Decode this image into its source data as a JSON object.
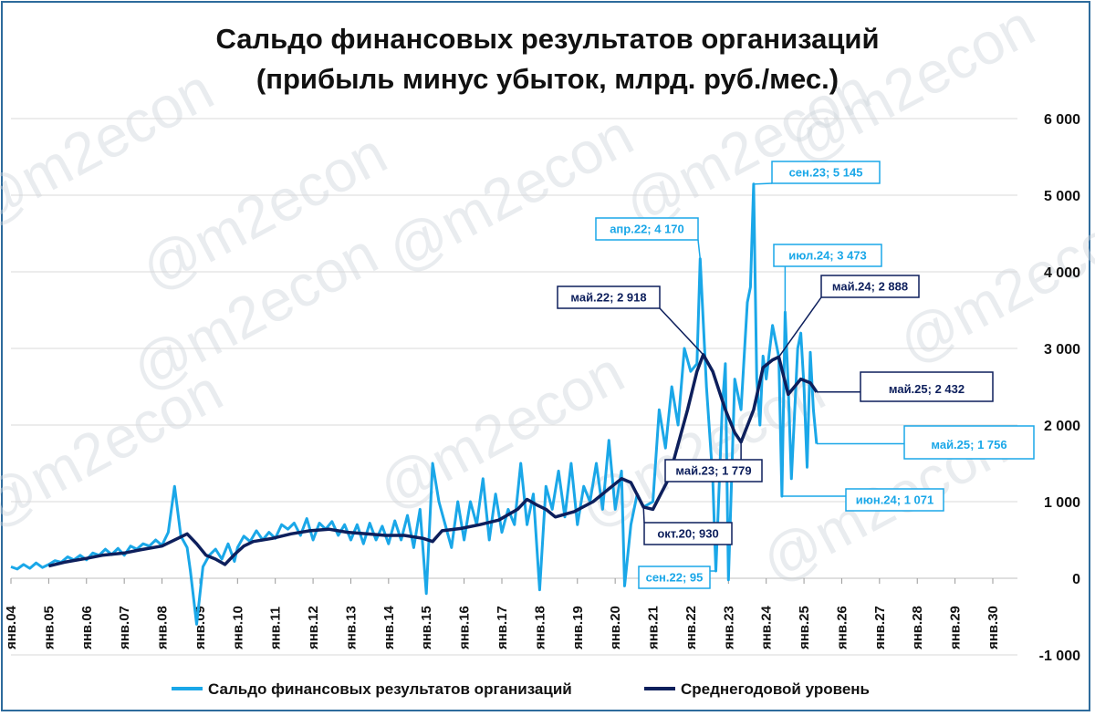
{
  "title_line1": "Сальдо финансовых результатов организаций",
  "title_line2": "(прибыль минус убыток, млрд. руб./мес.)",
  "watermark": "@m2econ",
  "colors": {
    "series1": "#1aa7e8",
    "series2": "#0d1f5c",
    "frame": "#2e6b9c",
    "grid": "#d9d9d9"
  },
  "chart_data": {
    "type": "line",
    "title": "Сальдо финансовых результатов организаций (прибыль минус убыток, млрд. руб./мес.)",
    "x_range": [
      "2004-01",
      "2030-12"
    ],
    "ylim": [
      -1000,
      6000
    ],
    "y_ticks": [
      -1000,
      0,
      1000,
      2000,
      3000,
      4000,
      5000,
      6000
    ],
    "y_tick_labels": [
      "-1 000",
      "0",
      "1 000",
      "2 000",
      "3 000",
      "4 000",
      "5 000",
      "6 000"
    ],
    "y_axis_position": "right",
    "x_tick_labels": [
      "янв.04",
      "янв.05",
      "янв.06",
      "янв.07",
      "янв.08",
      "янв.09",
      "янв.10",
      "янв.11",
      "янв.12",
      "янв.13",
      "янв.14",
      "янв.15",
      "янв.16",
      "янв.17",
      "янв.18",
      "янв.19",
      "янв.20",
      "янв.21",
      "янв.22",
      "янв.23",
      "янв.24",
      "янв.25",
      "янв.26",
      "янв.27",
      "янв.28",
      "янв.29",
      "янв.30"
    ],
    "grid": true,
    "legend_position": "bottom",
    "series": [
      {
        "name": "Сальдо финансовых результатов организаций",
        "color": "#1aa7e8",
        "points": [
          [
            "2004-01",
            150
          ],
          [
            "2004-03",
            120
          ],
          [
            "2004-05",
            180
          ],
          [
            "2004-07",
            130
          ],
          [
            "2004-09",
            200
          ],
          [
            "2004-11",
            140
          ],
          [
            "2005-01",
            180
          ],
          [
            "2005-03",
            230
          ],
          [
            "2005-05",
            210
          ],
          [
            "2005-07",
            280
          ],
          [
            "2005-09",
            240
          ],
          [
            "2005-11",
            300
          ],
          [
            "2006-01",
            240
          ],
          [
            "2006-03",
            330
          ],
          [
            "2006-05",
            300
          ],
          [
            "2006-07",
            380
          ],
          [
            "2006-09",
            310
          ],
          [
            "2006-11",
            390
          ],
          [
            "2007-01",
            300
          ],
          [
            "2007-03",
            420
          ],
          [
            "2007-05",
            380
          ],
          [
            "2007-07",
            450
          ],
          [
            "2007-09",
            420
          ],
          [
            "2007-11",
            500
          ],
          [
            "2008-01",
            430
          ],
          [
            "2008-03",
            600
          ],
          [
            "2008-05",
            1200
          ],
          [
            "2008-07",
            550
          ],
          [
            "2008-09",
            400
          ],
          [
            "2008-10",
            100
          ],
          [
            "2008-12",
            -600
          ],
          [
            "2009-02",
            150
          ],
          [
            "2009-04",
            300
          ],
          [
            "2009-06",
            380
          ],
          [
            "2009-08",
            250
          ],
          [
            "2009-10",
            450
          ],
          [
            "2009-12",
            220
          ],
          [
            "2010-01",
            400
          ],
          [
            "2010-03",
            550
          ],
          [
            "2010-05",
            480
          ],
          [
            "2010-07",
            620
          ],
          [
            "2010-09",
            500
          ],
          [
            "2010-11",
            600
          ],
          [
            "2011-01",
            520
          ],
          [
            "2011-03",
            700
          ],
          [
            "2011-05",
            640
          ],
          [
            "2011-07",
            720
          ],
          [
            "2011-09",
            560
          ],
          [
            "2011-11",
            780
          ],
          [
            "2012-01",
            500
          ],
          [
            "2012-03",
            720
          ],
          [
            "2012-05",
            640
          ],
          [
            "2012-07",
            740
          ],
          [
            "2012-09",
            560
          ],
          [
            "2012-11",
            700
          ],
          [
            "2013-01",
            500
          ],
          [
            "2013-03",
            700
          ],
          [
            "2013-05",
            450
          ],
          [
            "2013-07",
            720
          ],
          [
            "2013-09",
            500
          ],
          [
            "2013-11",
            680
          ],
          [
            "2014-01",
            450
          ],
          [
            "2014-03",
            750
          ],
          [
            "2014-05",
            500
          ],
          [
            "2014-07",
            820
          ],
          [
            "2014-09",
            400
          ],
          [
            "2014-11",
            900
          ],
          [
            "2015-01",
            -200
          ],
          [
            "2015-03",
            1500
          ],
          [
            "2015-05",
            1000
          ],
          [
            "2015-07",
            700
          ],
          [
            "2015-09",
            400
          ],
          [
            "2015-11",
            1000
          ],
          [
            "2016-01",
            500
          ],
          [
            "2016-03",
            1000
          ],
          [
            "2016-05",
            700
          ],
          [
            "2016-07",
            1300
          ],
          [
            "2016-09",
            500
          ],
          [
            "2016-11",
            1100
          ],
          [
            "2017-01",
            600
          ],
          [
            "2017-03",
            900
          ],
          [
            "2017-05",
            700
          ],
          [
            "2017-07",
            1500
          ],
          [
            "2017-09",
            700
          ],
          [
            "2017-11",
            1100
          ],
          [
            "2018-01",
            -150
          ],
          [
            "2018-03",
            1200
          ],
          [
            "2018-05",
            900
          ],
          [
            "2018-07",
            1400
          ],
          [
            "2018-09",
            800
          ],
          [
            "2018-11",
            1500
          ],
          [
            "2019-01",
            700
          ],
          [
            "2019-03",
            1200
          ],
          [
            "2019-05",
            1000
          ],
          [
            "2019-07",
            1500
          ],
          [
            "2019-09",
            900
          ],
          [
            "2019-11",
            1800
          ],
          [
            "2020-01",
            900
          ],
          [
            "2020-03",
            1400
          ],
          [
            "2020-04",
            -100
          ],
          [
            "2020-06",
            700
          ],
          [
            "2020-08",
            1100
          ],
          [
            "2020-10",
            930
          ],
          [
            "2021-01",
            1000
          ],
          [
            "2021-03",
            2200
          ],
          [
            "2021-05",
            1700
          ],
          [
            "2021-07",
            2500
          ],
          [
            "2021-09",
            2000
          ],
          [
            "2021-11",
            3000
          ],
          [
            "2022-01",
            2700
          ],
          [
            "2022-03",
            2800
          ],
          [
            "2022-04",
            4170
          ],
          [
            "2022-06",
            2500
          ],
          [
            "2022-08",
            1300
          ],
          [
            "2022-09",
            95
          ],
          [
            "2022-11",
            2200
          ],
          [
            "2022-12",
            2800
          ],
          [
            "2023-01",
            -20
          ],
          [
            "2023-03",
            2600
          ],
          [
            "2023-05",
            2200
          ],
          [
            "2023-07",
            3600
          ],
          [
            "2023-08",
            3800
          ],
          [
            "2023-09",
            5145
          ],
          [
            "2023-10",
            2600
          ],
          [
            "2023-11",
            2000
          ],
          [
            "2023-12",
            2900
          ],
          [
            "2024-01",
            2600
          ],
          [
            "2024-03",
            3300
          ],
          [
            "2024-05",
            2888
          ],
          [
            "2024-06",
            1071
          ],
          [
            "2024-07",
            3473
          ],
          [
            "2024-08",
            2500
          ],
          [
            "2024-09",
            1300
          ],
          [
            "2024-11",
            3000
          ],
          [
            "2024-12",
            3200
          ],
          [
            "2025-01",
            2500
          ],
          [
            "2025-02",
            1450
          ],
          [
            "2025-03",
            2950
          ],
          [
            "2025-04",
            2200
          ],
          [
            "2025-05",
            1756
          ]
        ]
      },
      {
        "name": "Среднегодовой уровень",
        "color": "#0d1f5c",
        "points": [
          [
            "2005-01",
            160
          ],
          [
            "2005-06",
            210
          ],
          [
            "2006-01",
            260
          ],
          [
            "2006-06",
            300
          ],
          [
            "2007-01",
            330
          ],
          [
            "2007-06",
            370
          ],
          [
            "2008-01",
            420
          ],
          [
            "2008-06",
            520
          ],
          [
            "2008-09",
            580
          ],
          [
            "2008-12",
            450
          ],
          [
            "2009-03",
            300
          ],
          [
            "2009-06",
            250
          ],
          [
            "2009-09",
            180
          ],
          [
            "2009-12",
            310
          ],
          [
            "2010-03",
            420
          ],
          [
            "2010-06",
            480
          ],
          [
            "2010-12",
            520
          ],
          [
            "2011-06",
            580
          ],
          [
            "2011-12",
            620
          ],
          [
            "2012-06",
            640
          ],
          [
            "2012-12",
            600
          ],
          [
            "2013-06",
            580
          ],
          [
            "2013-12",
            560
          ],
          [
            "2014-06",
            560
          ],
          [
            "2014-12",
            520
          ],
          [
            "2015-03",
            480
          ],
          [
            "2015-06",
            620
          ],
          [
            "2015-12",
            650
          ],
          [
            "2016-06",
            700
          ],
          [
            "2016-12",
            760
          ],
          [
            "2017-06",
            900
          ],
          [
            "2017-09",
            1030
          ],
          [
            "2017-12",
            960
          ],
          [
            "2018-03",
            900
          ],
          [
            "2018-06",
            800
          ],
          [
            "2018-12",
            870
          ],
          [
            "2019-06",
            1000
          ],
          [
            "2019-12",
            1200
          ],
          [
            "2020-03",
            1300
          ],
          [
            "2020-06",
            1250
          ],
          [
            "2020-10",
            930
          ],
          [
            "2021-01",
            900
          ],
          [
            "2021-06",
            1300
          ],
          [
            "2021-12",
            2200
          ],
          [
            "2022-03",
            2700
          ],
          [
            "2022-05",
            2918
          ],
          [
            "2022-08",
            2700
          ],
          [
            "2022-12",
            2200
          ],
          [
            "2023-03",
            1900
          ],
          [
            "2023-05",
            1779
          ],
          [
            "2023-09",
            2200
          ],
          [
            "2023-12",
            2750
          ],
          [
            "2024-03",
            2850
          ],
          [
            "2024-05",
            2888
          ],
          [
            "2024-08",
            2400
          ],
          [
            "2024-10",
            2500
          ],
          [
            "2024-12",
            2600
          ],
          [
            "2025-03",
            2550
          ],
          [
            "2025-05",
            2432
          ]
        ]
      }
    ],
    "annotations": [
      {
        "label": "сен.23; 5 145",
        "date": "2023-09",
        "value": 5145,
        "series": 0
      },
      {
        "label": "апр.22; 4 170",
        "date": "2022-04",
        "value": 4170,
        "series": 0
      },
      {
        "label": "июл.24; 3 473",
        "date": "2024-07",
        "value": 3473,
        "series": 0
      },
      {
        "label": "май.24; 2 888",
        "date": "2024-05",
        "value": 2888,
        "series": 1
      },
      {
        "label": "май.22; 2 918",
        "date": "2022-05",
        "value": 2918,
        "series": 1
      },
      {
        "label": "май.25; 2 432",
        "date": "2025-05",
        "value": 2432,
        "series": 1
      },
      {
        "label": "май.25; 1 756",
        "date": "2025-05",
        "value": 1756,
        "series": 0
      },
      {
        "label": "май.23; 1 779",
        "date": "2023-05",
        "value": 1779,
        "series": 1
      },
      {
        "label": "июн.24; 1 071",
        "date": "2024-06",
        "value": 1071,
        "series": 0
      },
      {
        "label": "окт.20; 930",
        "date": "2020-10",
        "value": 930,
        "series": 1
      },
      {
        "label": "сен.22; 95",
        "date": "2022-09",
        "value": 95,
        "series": 0
      }
    ]
  }
}
